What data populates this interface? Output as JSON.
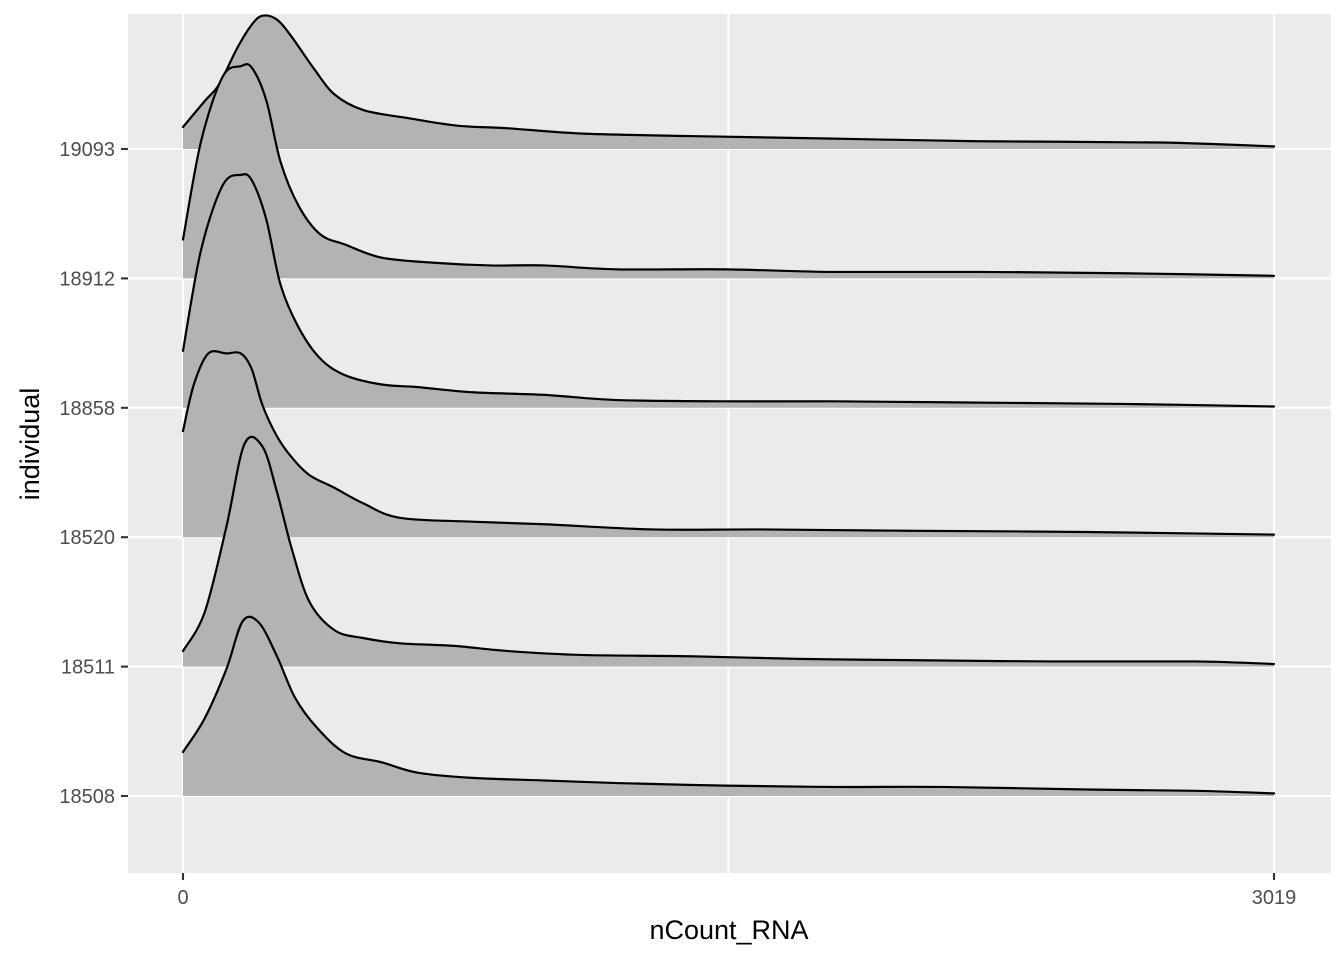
{
  "chart_data": {
    "type": "area",
    "subtype": "ridgeline-density",
    "title": "",
    "xlabel": "nCount_RNA",
    "ylabel": "individual",
    "x_ticks": [
      "0",
      "3019"
    ],
    "xlim": [
      0,
      3019
    ],
    "categories": [
      "18508",
      "18511",
      "18520",
      "18858",
      "18912",
      "19093"
    ],
    "grid": true,
    "legend": "none",
    "colors": {
      "panel": "#EBEBEB",
      "grid": "#FFFFFF",
      "fill": "#B3B3B3",
      "line": "#000000",
      "tick": "#333333"
    },
    "density_scale": "relative ridge height (1.0 = one category spacing)",
    "series": [
      {
        "name": "18508",
        "x": [
          0,
          60,
          120,
          165,
          210,
          260,
          310,
          370,
          450,
          550,
          650,
          800,
          1000,
          1200,
          1500,
          1800,
          2100,
          2500,
          2800,
          3019
        ],
        "density": [
          0.34,
          0.6,
          0.98,
          1.35,
          1.34,
          1.08,
          0.76,
          0.53,
          0.33,
          0.26,
          0.18,
          0.14,
          0.12,
          0.1,
          0.08,
          0.07,
          0.07,
          0.05,
          0.04,
          0.02
        ]
      },
      {
        "name": "18511",
        "x": [
          0,
          60,
          120,
          170,
          220,
          260,
          300,
          350,
          420,
          500,
          600,
          750,
          900,
          1100,
          1400,
          1700,
          2000,
          2400,
          2800,
          3019
        ],
        "density": [
          0.12,
          0.42,
          1.08,
          1.72,
          1.7,
          1.35,
          0.92,
          0.5,
          0.28,
          0.22,
          0.18,
          0.16,
          0.12,
          0.09,
          0.08,
          0.06,
          0.05,
          0.04,
          0.04,
          0.02
        ]
      },
      {
        "name": "18520",
        "x": [
          0,
          30,
          70,
          120,
          160,
          190,
          220,
          260,
          300,
          350,
          420,
          500,
          600,
          800,
          1000,
          1300,
          1600,
          2000,
          2500,
          3019
        ],
        "density": [
          0.82,
          1.18,
          1.42,
          1.42,
          1.42,
          1.3,
          1.02,
          0.78,
          0.62,
          0.48,
          0.38,
          0.26,
          0.15,
          0.12,
          0.1,
          0.06,
          0.06,
          0.05,
          0.04,
          0.02
        ]
      },
      {
        "name": "18858",
        "x": [
          0,
          50,
          110,
          160,
          190,
          230,
          270,
          320,
          380,
          450,
          550,
          650,
          800,
          1000,
          1200,
          1500,
          1800,
          2200,
          2600,
          3019
        ],
        "density": [
          0.44,
          1.22,
          1.72,
          1.8,
          1.76,
          1.46,
          0.95,
          0.62,
          0.38,
          0.25,
          0.18,
          0.16,
          0.12,
          0.1,
          0.06,
          0.05,
          0.05,
          0.04,
          0.03,
          0.01
        ]
      },
      {
        "name": "18912",
        "x": [
          0,
          50,
          110,
          160,
          190,
          230,
          270,
          320,
          380,
          450,
          550,
          700,
          850,
          1000,
          1200,
          1500,
          1800,
          2200,
          2600,
          3019
        ],
        "density": [
          0.3,
          1.06,
          1.56,
          1.64,
          1.63,
          1.38,
          0.9,
          0.56,
          0.34,
          0.26,
          0.16,
          0.12,
          0.1,
          0.1,
          0.07,
          0.07,
          0.05,
          0.05,
          0.04,
          0.02
        ]
      },
      {
        "name": "19093",
        "x": [
          0,
          60,
          100,
          150,
          190,
          220,
          260,
          300,
          360,
          420,
          500,
          620,
          760,
          900,
          1100,
          1400,
          1800,
          2200,
          2700,
          3019
        ],
        "density": [
          0.17,
          0.37,
          0.5,
          0.78,
          0.96,
          1.03,
          1.0,
          0.87,
          0.63,
          0.42,
          0.3,
          0.24,
          0.18,
          0.16,
          0.12,
          0.1,
          0.08,
          0.06,
          0.05,
          0.02
        ]
      }
    ]
  }
}
